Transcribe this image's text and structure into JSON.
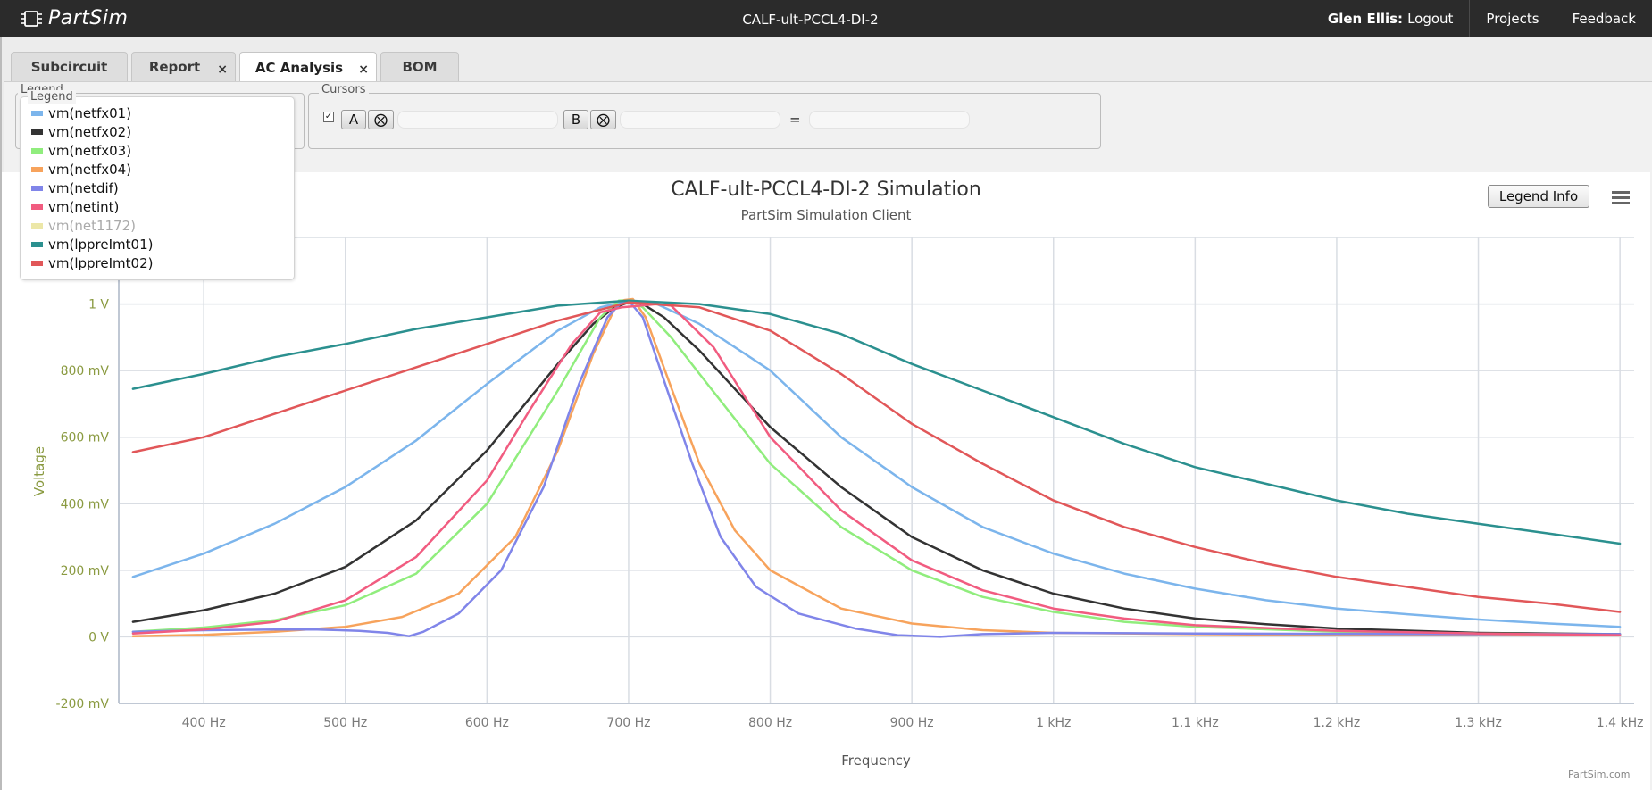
{
  "app": {
    "brand": "PartSim",
    "doc_title": "CALF-ult-PCCL4-DI-2"
  },
  "nav": {
    "user_name": "Glen Ellis:",
    "logout": "Logout",
    "projects": "Projects",
    "feedback": "Feedback"
  },
  "tabs": [
    {
      "label": "Subcircuit",
      "closable": false
    },
    {
      "label": "Report",
      "closable": true,
      "close_glyph": "×"
    },
    {
      "label": "AC Analysis",
      "closable": true,
      "active": true,
      "close_glyph": "×"
    },
    {
      "label": "BOM",
      "closable": false
    }
  ],
  "legend_panel": {
    "title": "Legend"
  },
  "cursors": {
    "title": "Cursors",
    "checked": true,
    "check_glyph": "✓",
    "a_label": "A",
    "b_label": "B",
    "clear_glyph": "⨂",
    "equals": "=",
    "a_value": "",
    "b_value": "",
    "result_value": ""
  },
  "chart_controls": {
    "legend_info": "Legend Info",
    "menu_icon": "hamburger-menu-icon"
  },
  "watermark": "PartSim.com",
  "chart_data": {
    "type": "line",
    "title": "CALF-ult-PCCL4-DI-2 Simulation",
    "subtitle": "PartSim Simulation Client",
    "xlabel": "Frequency",
    "ylabel": "Voltage",
    "xlim": [
      340,
      1410
    ],
    "ylim": [
      -200,
      1200
    ],
    "x_ticks": [
      {
        "value": 400,
        "label": "400 Hz"
      },
      {
        "value": 500,
        "label": "500 Hz"
      },
      {
        "value": 600,
        "label": "600 Hz"
      },
      {
        "value": 700,
        "label": "700 Hz"
      },
      {
        "value": 800,
        "label": "800 Hz"
      },
      {
        "value": 900,
        "label": "900 Hz"
      },
      {
        "value": 1000,
        "label": "1 kHz"
      },
      {
        "value": 1100,
        "label": "1.1 kHz"
      },
      {
        "value": 1200,
        "label": "1.2 kHz"
      },
      {
        "value": 1300,
        "label": "1.3 kHz"
      },
      {
        "value": 1400,
        "label": "1.4 kHz"
      }
    ],
    "y_ticks": [
      {
        "value": -200,
        "label": "-200 mV"
      },
      {
        "value": 0,
        "label": "0 V"
      },
      {
        "value": 200,
        "label": "200 mV"
      },
      {
        "value": 400,
        "label": "400 mV"
      },
      {
        "value": 600,
        "label": "600 mV"
      },
      {
        "value": 800,
        "label": "800 mV"
      },
      {
        "value": 1000,
        "label": "1 V"
      }
    ],
    "grid": true,
    "legend_position": "top-left",
    "x_unit": "Hz",
    "y_unit": "mV",
    "series": [
      {
        "name": "vm(netfx01)",
        "color": "#7cb5ec",
        "visible": true,
        "points": [
          [
            350,
            180
          ],
          [
            400,
            250
          ],
          [
            450,
            340
          ],
          [
            500,
            450
          ],
          [
            550,
            590
          ],
          [
            600,
            760
          ],
          [
            650,
            920
          ],
          [
            680,
            990
          ],
          [
            700,
            1010
          ],
          [
            720,
            1000
          ],
          [
            750,
            940
          ],
          [
            800,
            800
          ],
          [
            850,
            600
          ],
          [
            900,
            450
          ],
          [
            950,
            330
          ],
          [
            1000,
            250
          ],
          [
            1050,
            190
          ],
          [
            1100,
            145
          ],
          [
            1150,
            110
          ],
          [
            1200,
            85
          ],
          [
            1250,
            68
          ],
          [
            1300,
            52
          ],
          [
            1350,
            40
          ],
          [
            1400,
            30
          ]
        ]
      },
      {
        "name": "vm(netfx02)",
        "color": "#333333",
        "visible": true,
        "points": [
          [
            350,
            45
          ],
          [
            400,
            80
          ],
          [
            450,
            130
          ],
          [
            500,
            210
          ],
          [
            550,
            350
          ],
          [
            600,
            560
          ],
          [
            650,
            820
          ],
          [
            675,
            940
          ],
          [
            690,
            990
          ],
          [
            700,
            1005
          ],
          [
            710,
            1000
          ],
          [
            725,
            960
          ],
          [
            750,
            860
          ],
          [
            800,
            630
          ],
          [
            850,
            450
          ],
          [
            900,
            300
          ],
          [
            950,
            200
          ],
          [
            1000,
            130
          ],
          [
            1050,
            85
          ],
          [
            1100,
            55
          ],
          [
            1150,
            38
          ],
          [
            1200,
            25
          ],
          [
            1300,
            12
          ],
          [
            1400,
            8
          ]
        ]
      },
      {
        "name": "vm(netfx03)",
        "color": "#90ed7d",
        "visible": true,
        "points": [
          [
            350,
            15
          ],
          [
            400,
            28
          ],
          [
            450,
            50
          ],
          [
            500,
            95
          ],
          [
            550,
            190
          ],
          [
            600,
            400
          ],
          [
            650,
            740
          ],
          [
            680,
            960
          ],
          [
            693,
            1010
          ],
          [
            700,
            1012
          ],
          [
            710,
            990
          ],
          [
            730,
            900
          ],
          [
            750,
            790
          ],
          [
            800,
            520
          ],
          [
            850,
            330
          ],
          [
            900,
            200
          ],
          [
            950,
            120
          ],
          [
            1000,
            75
          ],
          [
            1050,
            45
          ],
          [
            1100,
            30
          ],
          [
            1200,
            15
          ],
          [
            1300,
            10
          ],
          [
            1400,
            6
          ]
        ]
      },
      {
        "name": "vm(netfx04)",
        "color": "#f7a35c",
        "visible": true,
        "points": [
          [
            350,
            2
          ],
          [
            400,
            6
          ],
          [
            450,
            15
          ],
          [
            500,
            30
          ],
          [
            540,
            60
          ],
          [
            580,
            130
          ],
          [
            620,
            300
          ],
          [
            650,
            560
          ],
          [
            675,
            850
          ],
          [
            690,
            985
          ],
          [
            697,
            1012
          ],
          [
            703,
            1015
          ],
          [
            712,
            960
          ],
          [
            730,
            750
          ],
          [
            750,
            520
          ],
          [
            775,
            320
          ],
          [
            800,
            200
          ],
          [
            850,
            85
          ],
          [
            900,
            40
          ],
          [
            950,
            20
          ],
          [
            1000,
            12
          ],
          [
            1100,
            8
          ],
          [
            1200,
            6
          ],
          [
            1300,
            5
          ],
          [
            1400,
            4
          ]
        ]
      },
      {
        "name": "vm(netdif)",
        "color": "#8085e9",
        "visible": true,
        "points": [
          [
            350,
            15
          ],
          [
            400,
            20
          ],
          [
            450,
            22
          ],
          [
            480,
            22
          ],
          [
            510,
            18
          ],
          [
            530,
            12
          ],
          [
            545,
            2
          ],
          [
            555,
            15
          ],
          [
            580,
            70
          ],
          [
            610,
            200
          ],
          [
            640,
            450
          ],
          [
            665,
            760
          ],
          [
            685,
            960
          ],
          [
            695,
            1005
          ],
          [
            700,
            1010
          ],
          [
            710,
            960
          ],
          [
            725,
            770
          ],
          [
            745,
            520
          ],
          [
            765,
            300
          ],
          [
            790,
            150
          ],
          [
            820,
            70
          ],
          [
            860,
            25
          ],
          [
            890,
            5
          ],
          [
            920,
            0
          ],
          [
            950,
            8
          ],
          [
            1000,
            12
          ],
          [
            1100,
            10
          ],
          [
            1200,
            9
          ],
          [
            1300,
            8
          ],
          [
            1400,
            8
          ]
        ]
      },
      {
        "name": "vm(netint)",
        "color": "#f15c80",
        "visible": true,
        "points": [
          [
            350,
            10
          ],
          [
            400,
            22
          ],
          [
            450,
            45
          ],
          [
            500,
            110
          ],
          [
            550,
            240
          ],
          [
            600,
            470
          ],
          [
            630,
            680
          ],
          [
            660,
            880
          ],
          [
            680,
            975
          ],
          [
            695,
            990
          ],
          [
            700,
            992
          ],
          [
            720,
            1000
          ],
          [
            730,
            995
          ],
          [
            760,
            870
          ],
          [
            800,
            600
          ],
          [
            850,
            380
          ],
          [
            900,
            230
          ],
          [
            950,
            140
          ],
          [
            1000,
            85
          ],
          [
            1050,
            55
          ],
          [
            1100,
            35
          ],
          [
            1200,
            18
          ],
          [
            1300,
            10
          ],
          [
            1400,
            5
          ]
        ]
      },
      {
        "name": "vm(net1172)",
        "color": "#e4d354",
        "visible": false,
        "points": []
      },
      {
        "name": "vm(lppreImt01)",
        "color": "#2b908f",
        "visible": true,
        "points": [
          [
            350,
            745
          ],
          [
            400,
            790
          ],
          [
            450,
            840
          ],
          [
            500,
            880
          ],
          [
            550,
            925
          ],
          [
            600,
            960
          ],
          [
            650,
            995
          ],
          [
            700,
            1010
          ],
          [
            750,
            1000
          ],
          [
            800,
            970
          ],
          [
            850,
            910
          ],
          [
            900,
            820
          ],
          [
            950,
            740
          ],
          [
            1000,
            660
          ],
          [
            1050,
            580
          ],
          [
            1100,
            510
          ],
          [
            1150,
            460
          ],
          [
            1200,
            410
          ],
          [
            1250,
            370
          ],
          [
            1300,
            340
          ],
          [
            1350,
            310
          ],
          [
            1400,
            280
          ]
        ]
      },
      {
        "name": "vm(lppreImt02)",
        "color": "#e15759",
        "visible": true,
        "points": [
          [
            350,
            555
          ],
          [
            400,
            600
          ],
          [
            450,
            670
          ],
          [
            500,
            740
          ],
          [
            550,
            810
          ],
          [
            600,
            880
          ],
          [
            650,
            950
          ],
          [
            700,
            1005
          ],
          [
            750,
            990
          ],
          [
            800,
            920
          ],
          [
            850,
            790
          ],
          [
            900,
            640
          ],
          [
            950,
            520
          ],
          [
            1000,
            410
          ],
          [
            1050,
            330
          ],
          [
            1100,
            270
          ],
          [
            1150,
            220
          ],
          [
            1200,
            180
          ],
          [
            1250,
            150
          ],
          [
            1300,
            120
          ],
          [
            1350,
            100
          ],
          [
            1400,
            75
          ]
        ]
      }
    ]
  }
}
